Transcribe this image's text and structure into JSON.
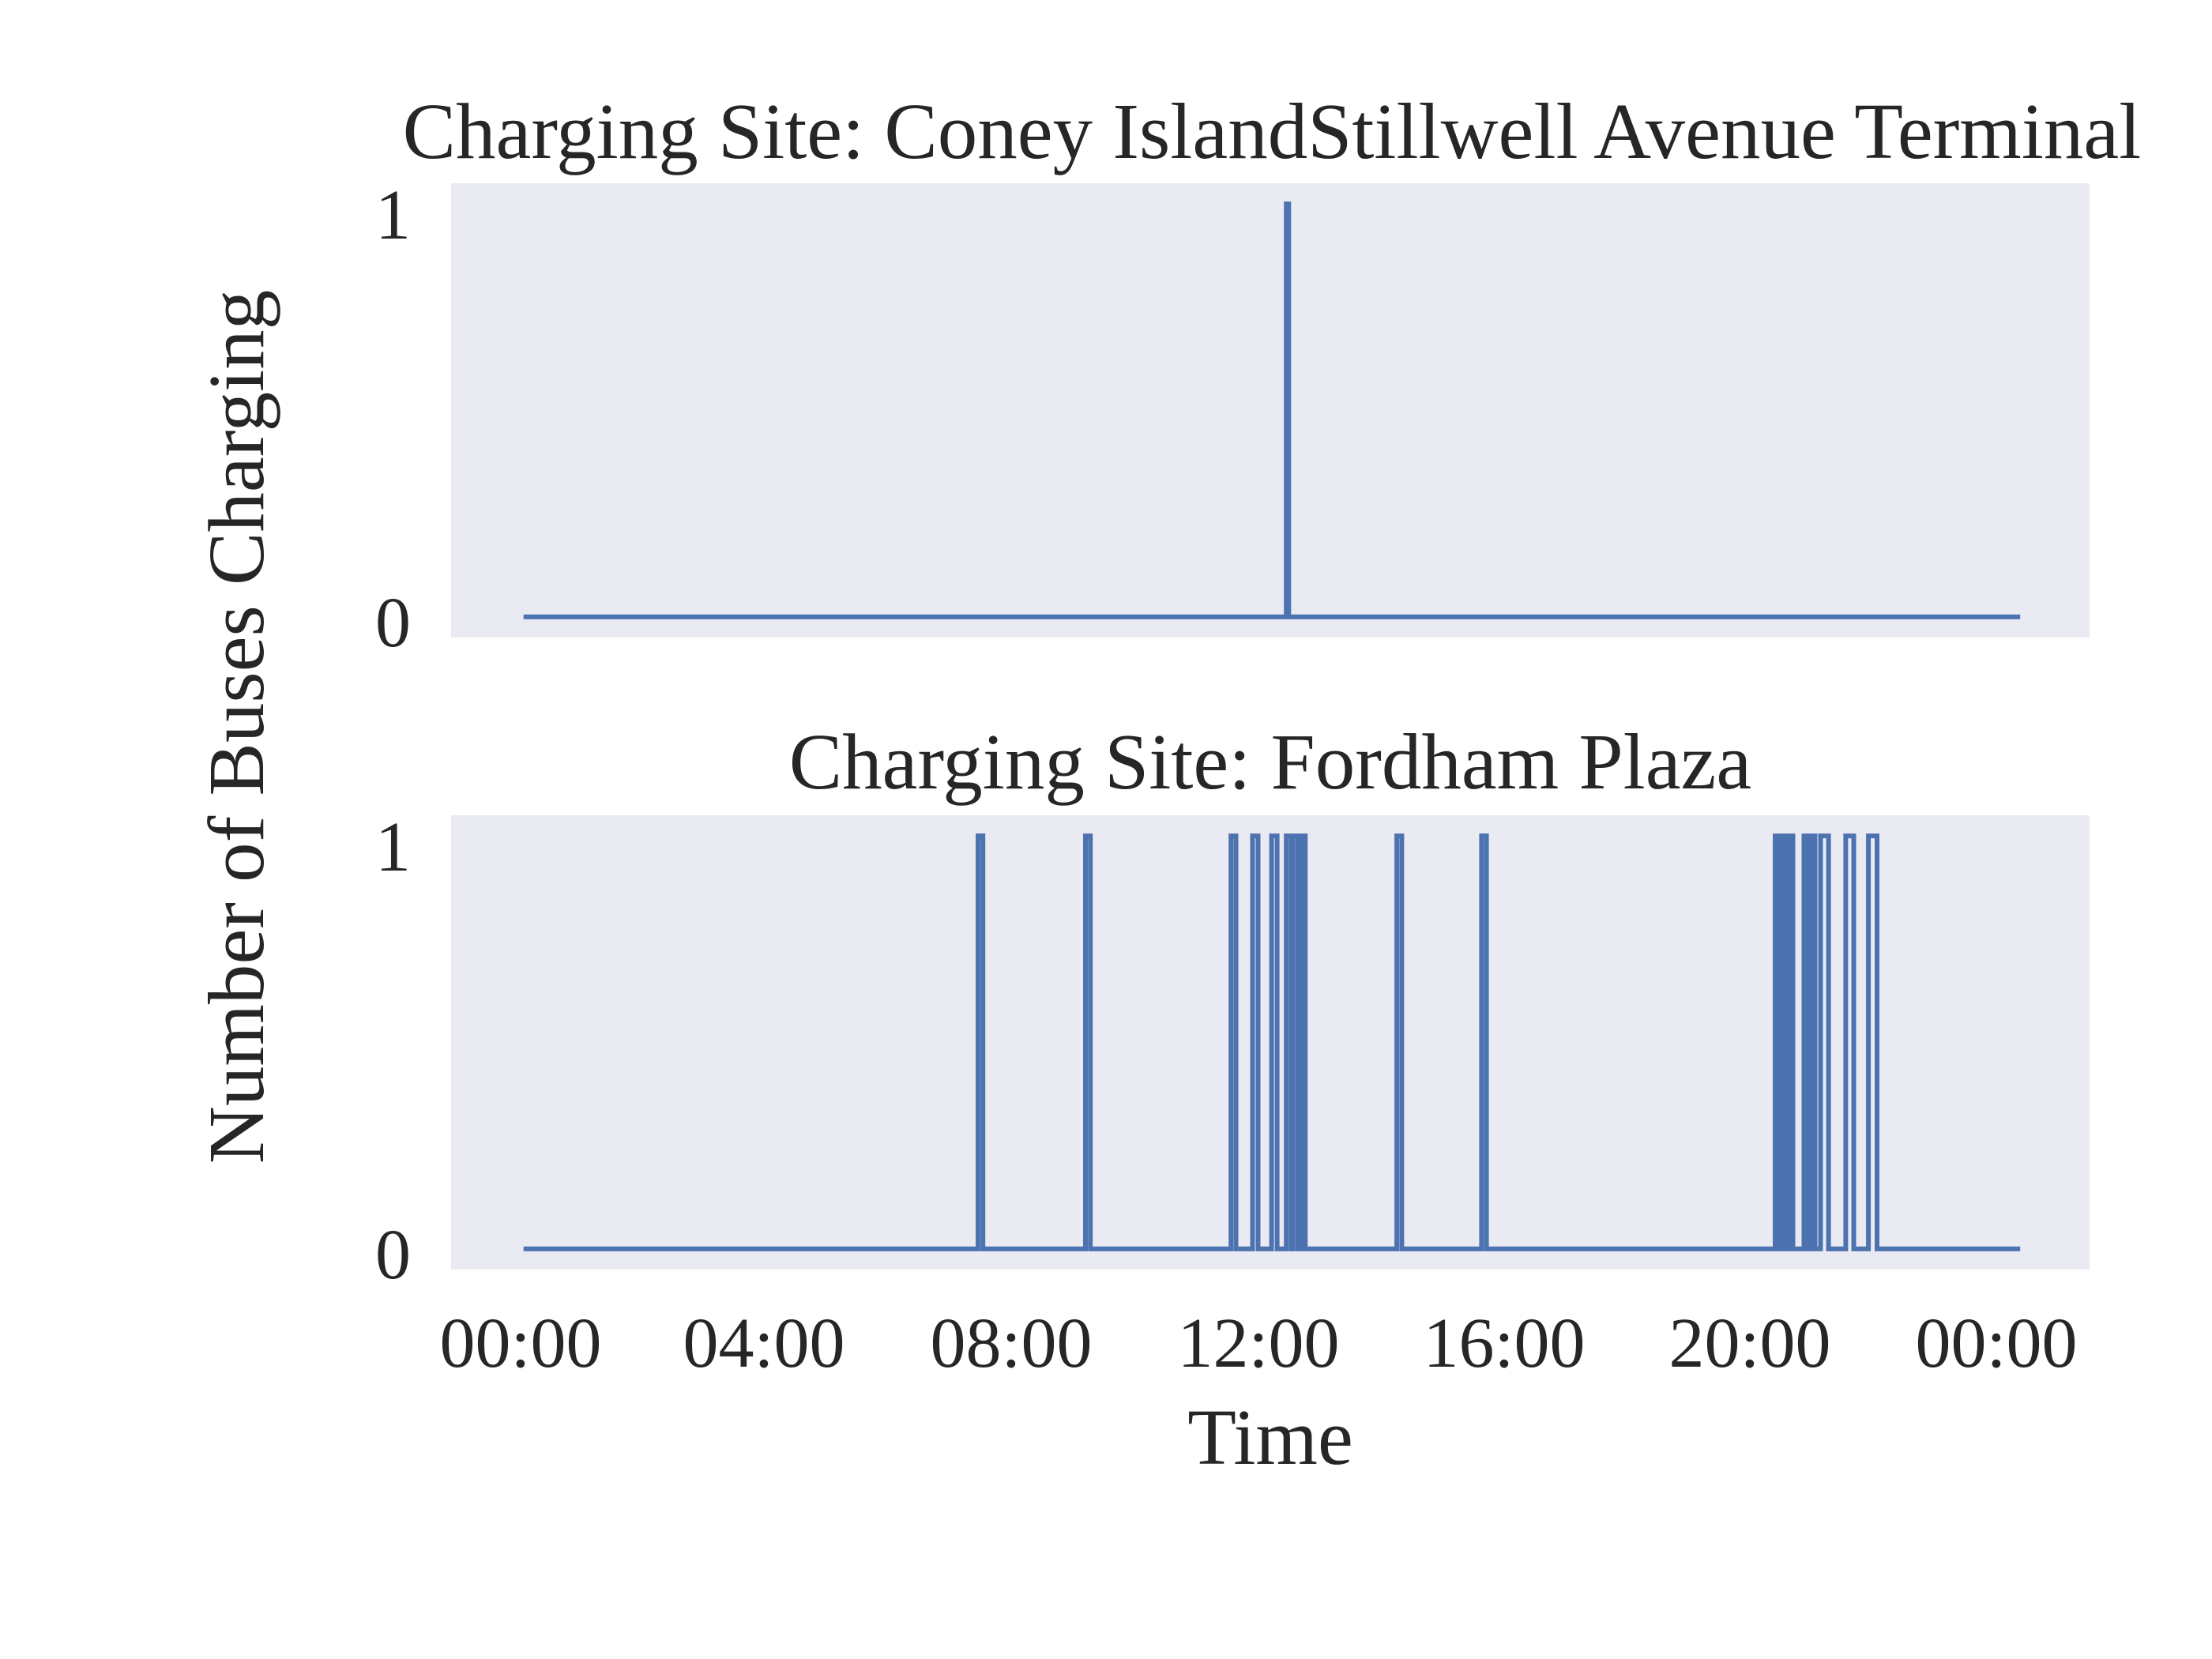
{
  "chart_data": {
    "type": "line",
    "ylabel": "Number of Buses Charging",
    "xlabel": "Time",
    "x_ticks": [
      "00:00",
      "04:00",
      "08:00",
      "12:00",
      "16:00",
      "20:00",
      "00:00"
    ],
    "xlim_hours": [
      -1.18,
      25.5
    ],
    "grid": false,
    "panels": [
      {
        "title": "Charging Site: Coney IslandStillwell Avenue Terminal",
        "y_ticks": [
          "0",
          "1"
        ],
        "ylim": [
          -0.05,
          1.05
        ],
        "series": [
          {
            "intervals": [
              [
                12.42,
                12.46
              ]
            ]
          }
        ]
      },
      {
        "title": "Charging Site: Fordham Plaza",
        "y_ticks": [
          "0",
          "1"
        ],
        "ylim": [
          -0.05,
          1.05
        ],
        "series": [
          {
            "intervals": [
              [
                7.4,
                7.48
              ],
              [
                9.15,
                9.23
              ],
              [
                11.52,
                11.6
              ],
              [
                11.87,
                11.96
              ],
              [
                12.18,
                12.27
              ],
              [
                12.42,
                12.5
              ],
              [
                12.53,
                12.61
              ],
              [
                12.66,
                12.73
              ],
              [
                14.22,
                14.3
              ],
              [
                15.6,
                15.68
              ],
              [
                20.38,
                20.44
              ],
              [
                20.5,
                20.56
              ],
              [
                20.6,
                20.67
              ],
              [
                20.85,
                20.92
              ],
              [
                20.96,
                21.03
              ],
              [
                21.12,
                21.25
              ],
              [
                21.53,
                21.66
              ],
              [
                21.9,
                22.04
              ]
            ]
          }
        ]
      }
    ],
    "x_range_hours": [
      0,
      24.37
    ]
  }
}
